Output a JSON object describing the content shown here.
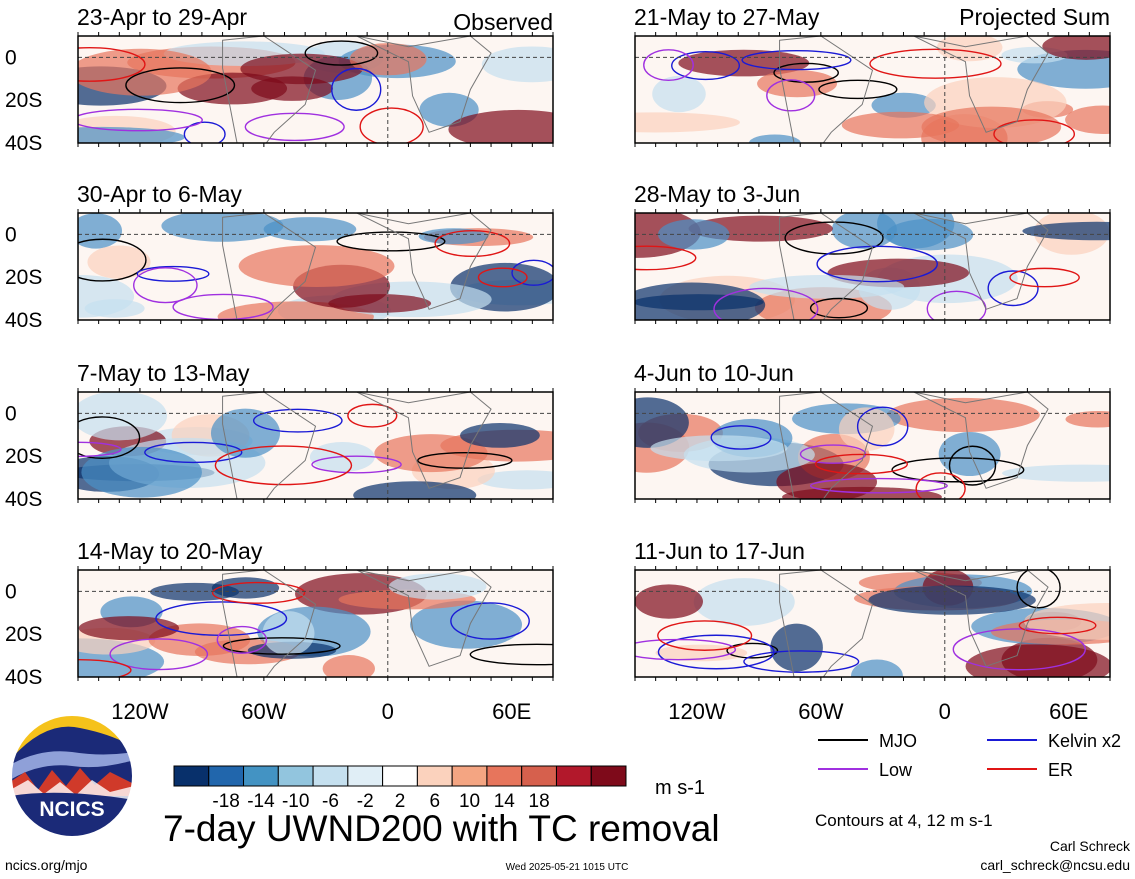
{
  "figure": {
    "title": "7-day UWND200 with TC removal",
    "observed_label": "Observed",
    "projected_label": "Projected Sum",
    "colorbar_unit": "m s-1",
    "contour_note": "Contours at 4, 12 m s-1",
    "author": "Carl Schreck",
    "email": "carl_schreck@ncsu.edu",
    "website": "ncics.org/mjo",
    "timestamp": "Wed 2025-05-21 1015 UTC",
    "logo_text": "NCICS",
    "legend": [
      {
        "label": "MJO",
        "color": "#000000"
      },
      {
        "label": "Kelvin x2",
        "color": "#1a1ad6"
      },
      {
        "label": "Low",
        "color": "#a030e0"
      },
      {
        "label": "ER",
        "color": "#e01515"
      }
    ],
    "colors": {
      "strong_neg": "#08306b",
      "neg": "#4a90c6",
      "weak_neg": "#c5e0ef",
      "neutral": "#ffffff",
      "weak_pos": "#fbd2bd",
      "pos": "#e7755c",
      "strong_pos": "#7e0a1a"
    }
  },
  "chart_data": {
    "type": "heatmap",
    "variable": "200-hPa zonal wind anomaly",
    "unit": "m s-1",
    "x_ticks": [
      "120W",
      "60W",
      "0",
      "60E"
    ],
    "x_tick_values": [
      -120,
      -60,
      0,
      60
    ],
    "xlim": [
      -150,
      80
    ],
    "y_ticks": [
      "0",
      "20S",
      "40S"
    ],
    "y_tick_values": [
      0,
      -20,
      -40
    ],
    "ylim": [
      -40,
      10
    ],
    "colorbar_levels": [
      -18,
      -14,
      -10,
      -6,
      -2,
      2,
      6,
      10,
      14,
      18
    ],
    "colorbar_labels": [
      "-18",
      "-14",
      "-10",
      "-6",
      "-2",
      "2",
      "6",
      "10",
      "14",
      "18"
    ],
    "colorbar_colors": [
      "#08306b",
      "#2166ac",
      "#4393c3",
      "#92c5de",
      "#c5e0ef",
      "#e0eef6",
      "#ffffff",
      "#fbd2bd",
      "#f4a582",
      "#e7755c",
      "#d6604d",
      "#b2182b",
      "#7e0a1a"
    ],
    "contour_levels": [
      4,
      12
    ],
    "panels": [
      {
        "title": "23-Apr to 29-Apr",
        "column": "Observed"
      },
      {
        "title": "30-Apr to 6-May",
        "column": "Observed"
      },
      {
        "title": "7-May to 13-May",
        "column": "Observed"
      },
      {
        "title": "14-May to 20-May",
        "column": "Observed"
      },
      {
        "title": "21-May to 27-May",
        "column": "Projected Sum"
      },
      {
        "title": "28-May to 3-Jun",
        "column": "Projected Sum"
      },
      {
        "title": "4-Jun to 10-Jun",
        "column": "Projected Sum"
      },
      {
        "title": "11-Jun to 17-Jun",
        "column": "Projected Sum"
      }
    ]
  }
}
